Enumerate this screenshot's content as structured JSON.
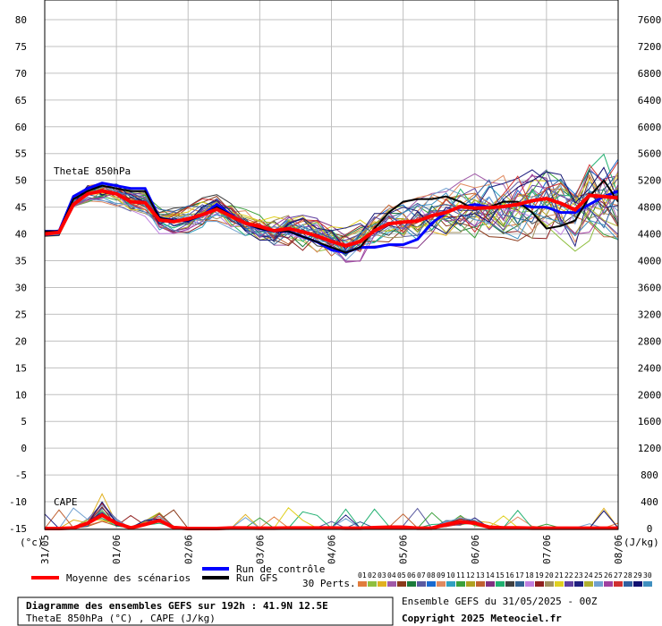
{
  "chart_data": {
    "type": "line",
    "xlim": [
      0,
      32
    ],
    "ylim_left": [
      -15,
      80
    ],
    "ylim_right": [
      0,
      7600
    ],
    "left_ticks": [
      -15,
      -10,
      -5,
      0,
      5,
      10,
      15,
      20,
      25,
      30,
      35,
      40,
      45,
      50,
      55,
      60,
      65,
      70,
      75,
      80
    ],
    "right_ticks": [
      0,
      400,
      800,
      1200,
      1600,
      2000,
      2400,
      2800,
      3200,
      3600,
      4000,
      4400,
      4800,
      5200,
      5600,
      6000,
      6400,
      6800,
      7200,
      7600
    ],
    "left_unit": "(°c)",
    "right_unit": "(J/kg)",
    "date_ticks": [
      {
        "x": 0,
        "label": "31/05"
      },
      {
        "x": 4,
        "label": "01/06"
      },
      {
        "x": 8,
        "label": "02/06"
      },
      {
        "x": 12,
        "label": "03/06"
      },
      {
        "x": 16,
        "label": "04/06"
      },
      {
        "x": 20,
        "label": "05/06"
      },
      {
        "x": 24,
        "label": "06/06"
      },
      {
        "x": 28,
        "label": "07/06"
      },
      {
        "x": 32,
        "label": "08/06"
      }
    ],
    "annotations": [
      "ThetaE 850hPa",
      "CAPE"
    ],
    "series": [
      {
        "name": "Moyenne des scénarios",
        "color": "#ff0000",
        "theta_values": [
          40,
          40.3,
          45.5,
          47.5,
          48,
          47.5,
          46,
          45.8,
          42.6,
          42.3,
          42.8,
          43.6,
          44.6,
          43.3,
          42,
          41.4,
          40.6,
          41,
          40.4,
          39.6,
          38.6,
          37.8,
          38.6,
          40.6,
          41.9,
          42.2,
          42.4,
          43.4,
          44,
          45.1,
          44.8,
          44.9,
          45.1,
          45.5,
          46.2,
          46.6,
          45.7,
          44.5,
          47.2,
          47,
          46.7
        ],
        "cape_values": [
          0,
          0,
          8,
          80,
          200,
          80,
          10,
          60,
          120,
          15,
          0,
          0,
          0,
          8,
          8,
          5,
          5,
          8,
          8,
          8,
          8,
          6,
          6,
          14,
          20,
          20,
          6,
          6,
          60,
          100,
          80,
          20,
          10,
          10,
          5,
          5,
          5,
          5,
          5,
          5,
          5
        ]
      },
      {
        "name": "Run de contrôle",
        "color": "#0000ff",
        "theta_values": [
          40.5,
          40.5,
          47,
          48.5,
          49.5,
          49,
          48.5,
          48.5,
          43,
          42.5,
          42.5,
          43.5,
          45.5,
          43.5,
          42,
          41,
          40.5,
          40.5,
          39.5,
          38.5,
          37,
          36.5,
          37.5,
          37.5,
          38,
          38,
          39,
          42,
          44,
          45,
          45.5,
          45,
          45,
          45.5,
          45,
          45,
          44,
          44,
          45.5,
          47,
          48
        ]
      },
      {
        "name": "Run GFS",
        "color": "#000000",
        "theta_values": [
          40.5,
          40.5,
          46.5,
          48,
          49,
          48.5,
          48,
          48,
          43,
          42.5,
          42.5,
          43.5,
          45,
          43.5,
          42,
          41,
          40.5,
          40.5,
          39.5,
          38.5,
          37.5,
          36.5,
          37.5,
          41,
          44,
          46,
          46.5,
          46.5,
          47,
          46,
          44.5,
          45,
          46,
          46,
          44,
          41,
          41.5,
          42.5,
          47,
          50,
          46
        ]
      }
    ],
    "pert_count": 30,
    "pert_colors": [
      "#e07c3c",
      "#8fbf3f",
      "#e0b020",
      "#a05aa8",
      "#8a3a1a",
      "#1a7a3a",
      "#5a5aa0",
      "#1a6ad0",
      "#e08a60",
      "#30a0c0",
      "#3aa03a",
      "#b0a020",
      "#c06030",
      "#803080",
      "#20b070",
      "#404040",
      "#306090",
      "#c080e0",
      "#902020",
      "#a09060",
      "#e0d020",
      "#6040a0",
      "#202080",
      "#b0b030",
      "#70a0d0",
      "#a040a0",
      "#d03030",
      "#3060a0",
      "#101070",
      "#4090c0"
    ],
    "legend": {
      "mean": "Moyenne des scénarios",
      "control": "Run de contrôle",
      "gfs": "Run GFS",
      "perts_label": "30 Perts.",
      "pert_numbers": [
        "01",
        "02",
        "03",
        "04",
        "05",
        "06",
        "07",
        "08",
        "09",
        "10",
        "11",
        "12",
        "13",
        "14",
        "15",
        "16",
        "17",
        "18",
        "19",
        "20",
        "21",
        "22",
        "23",
        "24",
        "25",
        "26",
        "27",
        "28",
        "29",
        "30"
      ]
    },
    "info": {
      "title": "Diagramme des ensembles GEFS sur 192h : 41.9N 12.5E",
      "subtitle": "ThetaE 850hPa (°C) , CAPE (J/kg)",
      "ensemble": "Ensemble GEFS du 31/05/2025 - 00Z",
      "copyright": "Copyright 2025 Meteociel.fr"
    }
  }
}
